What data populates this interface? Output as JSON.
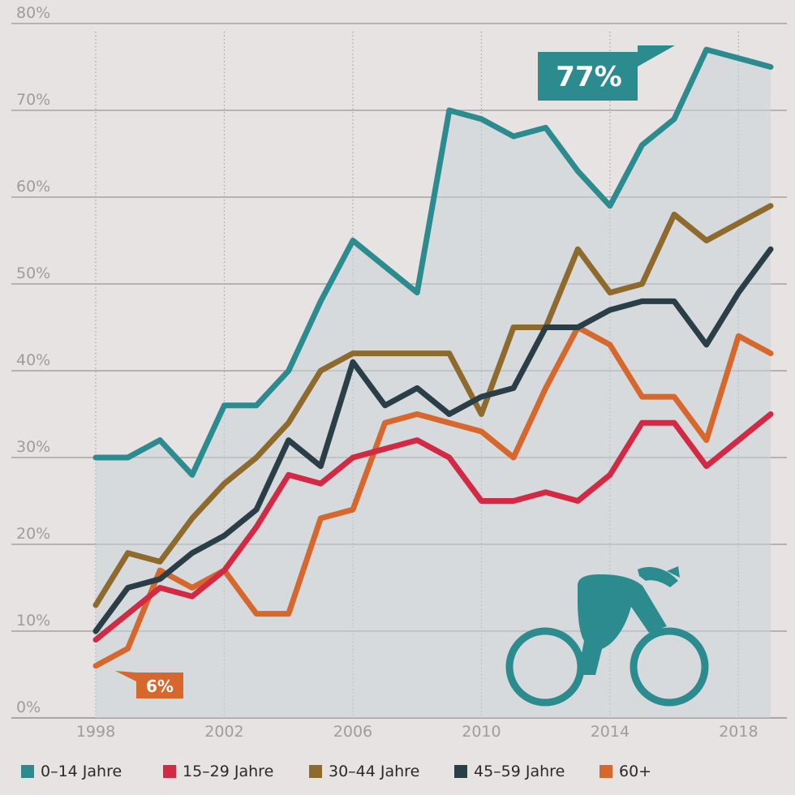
{
  "chart_data": {
    "type": "line",
    "title": "",
    "xlabel": "",
    "ylabel": "",
    "x": [
      1998,
      1999,
      2000,
      2001,
      2002,
      2003,
      2004,
      2005,
      2006,
      2007,
      2008,
      2009,
      2010,
      2011,
      2012,
      2013,
      2014,
      2015,
      2016,
      2017,
      2018,
      2019
    ],
    "xlim": [
      1998,
      2019
    ],
    "ylim": [
      0,
      80
    ],
    "x_ticks": [
      1998,
      2002,
      2006,
      2010,
      2014,
      2018
    ],
    "x_tick_labels": [
      "1998",
      "2002",
      "2006",
      "2010",
      "2014",
      "2018"
    ],
    "y_ticks": [
      0,
      10,
      20,
      30,
      40,
      50,
      60,
      70,
      80
    ],
    "y_tick_labels": [
      "0%",
      "10%",
      "20%",
      "30%",
      "40%",
      "50%",
      "60%",
      "70%",
      "80%"
    ],
    "grid": true,
    "legend_position": "bottom",
    "series": [
      {
        "name": "0–14 Jahre",
        "color": "#2b8b8e",
        "values": [
          30,
          30,
          32,
          28,
          36,
          36,
          40,
          48,
          55,
          52,
          49,
          70,
          69,
          67,
          68,
          63,
          59,
          66,
          69,
          77,
          76,
          75
        ]
      },
      {
        "name": "15–29 Jahre",
        "color": "#d22a45",
        "values": [
          9,
          12,
          15,
          14,
          17,
          22,
          28,
          27,
          30,
          31,
          32,
          30,
          25,
          25,
          26,
          25,
          28,
          34,
          34,
          29,
          32,
          35
        ]
      },
      {
        "name": "30–44 Jahre",
        "color": "#8e6a2c",
        "values": [
          13,
          19,
          18,
          23,
          27,
          30,
          34,
          40,
          42,
          42,
          42,
          42,
          35,
          45,
          45,
          54,
          49,
          50,
          58,
          55,
          57,
          59
        ]
      },
      {
        "name": "45–59 Jahre",
        "color": "#2a3e48",
        "values": [
          10,
          15,
          16,
          19,
          21,
          24,
          32,
          29,
          41,
          36,
          38,
          35,
          37,
          38,
          45,
          45,
          47,
          48,
          48,
          43,
          49,
          54
        ]
      },
      {
        "name": "60+",
        "color": "#d7682d",
        "values": [
          6,
          8,
          17,
          15,
          17,
          12,
          12,
          23,
          24,
          34,
          35,
          34,
          33,
          30,
          38,
          45,
          43,
          37,
          37,
          32,
          44,
          42
        ]
      }
    ],
    "annotations": [
      {
        "text": "77%",
        "series": 0,
        "x": 2017,
        "y": 77,
        "color": "#2b8b8e"
      },
      {
        "text": "6%",
        "series": 4,
        "x": 1998,
        "y": 6,
        "color": "#d7682d"
      }
    ]
  },
  "icon": {
    "name": "cyclist-icon",
    "color": "#2b8b8e"
  }
}
